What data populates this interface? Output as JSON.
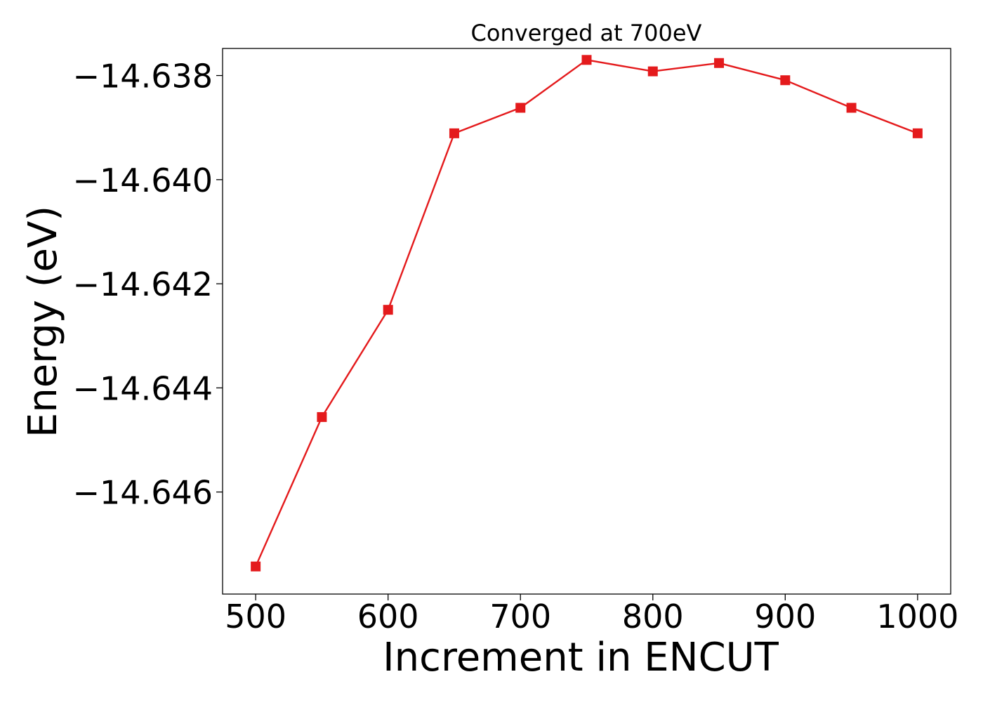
{
  "chart_data": {
    "type": "line",
    "title": "Converged at 700eV",
    "xlabel": "Increment in ENCUT",
    "ylabel": "Energy (eV)",
    "x": [
      500,
      550,
      600,
      650,
      700,
      750,
      800,
      850,
      900,
      950,
      1000
    ],
    "series": [
      {
        "values": [
          -14.64743,
          -14.64456,
          -14.6425,
          -14.63911,
          -14.63862,
          -14.6377,
          -14.63792,
          -14.63776,
          -14.63809,
          -14.63862,
          -14.63911
        ],
        "color": "#e41a1c",
        "marker": "square"
      }
    ],
    "xlim": [
      475,
      1025
    ],
    "ylim": [
      -14.64796,
      -14.63748
    ],
    "xticks": [
      500,
      600,
      700,
      800,
      900,
      1000
    ],
    "xtick_labels": [
      "500",
      "600",
      "700",
      "800",
      "900",
      "1000"
    ],
    "yticks": [
      -14.646,
      -14.644,
      -14.642,
      -14.64,
      -14.638
    ],
    "ytick_labels": [
      "−14.646",
      "−14.644",
      "−14.642",
      "−14.640",
      "−14.638"
    ],
    "grid": false,
    "legend": "none"
  }
}
